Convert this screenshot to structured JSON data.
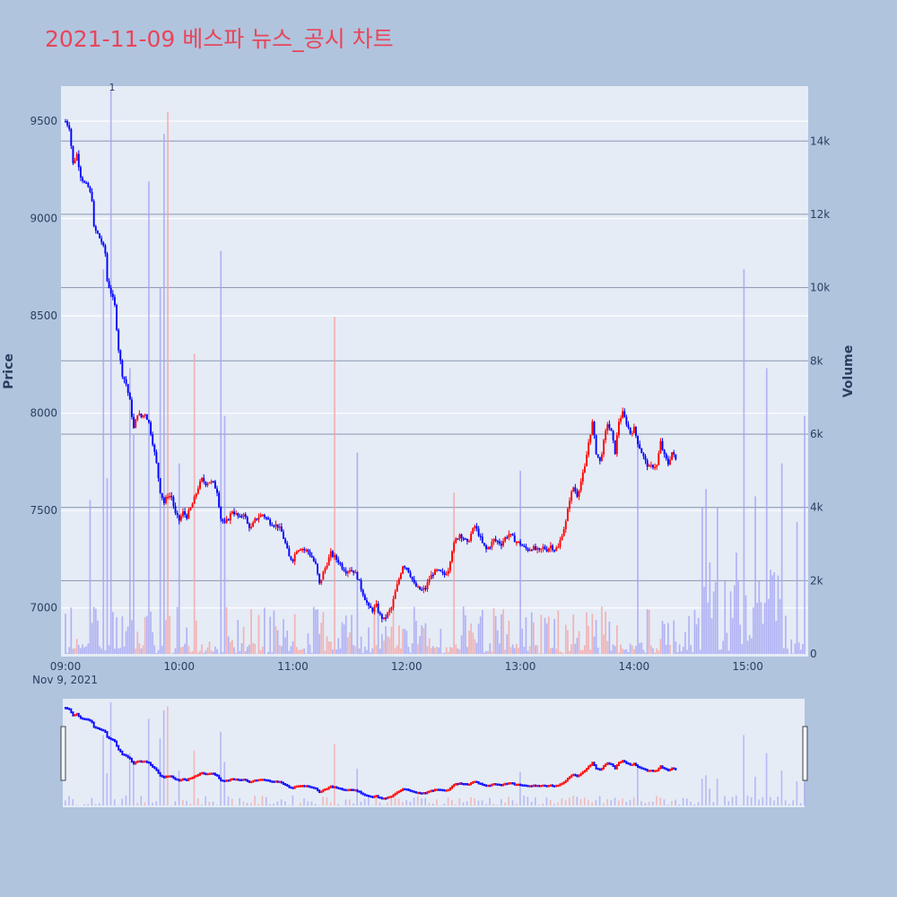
{
  "title": "2021-11-09 베스파 뉴스_공시 차트",
  "colors": {
    "background": "#b0c4de",
    "plot_bg": "#e5ecf6",
    "title": "#e8455a",
    "up": "#ff0000",
    "down": "#0000ff",
    "volume_up": "#f4a4a4",
    "volume_down": "#a4a4f4",
    "axis_text": "#2a3f5f",
    "grid": "#ffffff",
    "volume_grid": "#8a96b0"
  },
  "chart_data": {
    "type": "candlestick",
    "x_axis": {
      "ticks": [
        "09:00",
        "10:00",
        "11:00",
        "12:00",
        "13:00",
        "14:00",
        "15:00"
      ],
      "date_label": "Nov 9, 2021",
      "range": [
        "09:00",
        "15:30"
      ]
    },
    "y_axis_left": {
      "label": "Price",
      "ticks": [
        7000,
        7500,
        8000,
        8500,
        9000,
        9500
      ],
      "range": [
        6750,
        9680
      ]
    },
    "y_axis_right": {
      "label": "Volume",
      "ticks": [
        "0",
        "2k",
        "4k",
        "6k",
        "8k",
        "10k",
        "12k",
        "14k"
      ],
      "range": [
        0,
        15500
      ]
    },
    "annotation": {
      "text": "1",
      "time": "09:24"
    },
    "price_path": [
      [
        "09:00",
        9500
      ],
      [
        "09:02",
        9470
      ],
      [
        "09:04",
        9280
      ],
      [
        "09:06",
        9330
      ],
      [
        "09:08",
        9220
      ],
      [
        "09:10",
        9180
      ],
      [
        "09:12",
        9160
      ],
      [
        "09:14",
        9100
      ],
      [
        "09:15",
        8950
      ],
      [
        "09:17",
        8920
      ],
      [
        "09:19",
        8880
      ],
      [
        "09:21",
        8820
      ],
      [
        "09:22",
        8680
      ],
      [
        "09:24",
        8620
      ],
      [
        "09:26",
        8550
      ],
      [
        "09:28",
        8330
      ],
      [
        "09:30",
        8200
      ],
      [
        "09:32",
        8150
      ],
      [
        "09:34",
        8060
      ],
      [
        "09:36",
        7920
      ],
      [
        "09:38",
        8000
      ],
      [
        "09:40",
        7980
      ],
      [
        "09:42",
        8000
      ],
      [
        "09:44",
        7950
      ],
      [
        "09:46",
        7850
      ],
      [
        "09:48",
        7740
      ],
      [
        "09:50",
        7600
      ],
      [
        "09:52",
        7540
      ],
      [
        "09:54",
        7580
      ],
      [
        "09:56",
        7570
      ],
      [
        "09:58",
        7480
      ],
      [
        "10:00",
        7450
      ],
      [
        "10:02",
        7490
      ],
      [
        "10:04",
        7470
      ],
      [
        "10:06",
        7510
      ],
      [
        "10:08",
        7560
      ],
      [
        "10:10",
        7620
      ],
      [
        "10:12",
        7660
      ],
      [
        "10:14",
        7640
      ],
      [
        "10:16",
        7650
      ],
      [
        "10:18",
        7640
      ],
      [
        "10:20",
        7600
      ],
      [
        "10:22",
        7460
      ],
      [
        "10:24",
        7430
      ],
      [
        "10:26",
        7460
      ],
      [
        "10:28",
        7500
      ],
      [
        "10:30",
        7480
      ],
      [
        "10:32",
        7460
      ],
      [
        "10:34",
        7490
      ],
      [
        "10:36",
        7430
      ],
      [
        "10:38",
        7410
      ],
      [
        "10:40",
        7450
      ],
      [
        "10:42",
        7470
      ],
      [
        "10:44",
        7480
      ],
      [
        "10:46",
        7460
      ],
      [
        "10:48",
        7440
      ],
      [
        "10:50",
        7430
      ],
      [
        "10:52",
        7420
      ],
      [
        "10:54",
        7390
      ],
      [
        "10:56",
        7330
      ],
      [
        "10:58",
        7260
      ],
      [
        "11:00",
        7250
      ],
      [
        "11:02",
        7300
      ],
      [
        "11:04",
        7310
      ],
      [
        "11:06",
        7300
      ],
      [
        "11:08",
        7290
      ],
      [
        "11:10",
        7260
      ],
      [
        "11:12",
        7220
      ],
      [
        "11:14",
        7120
      ],
      [
        "11:16",
        7180
      ],
      [
        "11:18",
        7230
      ],
      [
        "11:20",
        7280
      ],
      [
        "11:22",
        7260
      ],
      [
        "11:24",
        7240
      ],
      [
        "11:26",
        7210
      ],
      [
        "11:28",
        7190
      ],
      [
        "11:30",
        7200
      ],
      [
        "11:32",
        7190
      ],
      [
        "11:34",
        7160
      ],
      [
        "11:36",
        7100
      ],
      [
        "11:38",
        7050
      ],
      [
        "11:40",
        7000
      ],
      [
        "11:42",
        6990
      ],
      [
        "11:44",
        7010
      ],
      [
        "11:46",
        6960
      ],
      [
        "11:48",
        6940
      ],
      [
        "11:50",
        6970
      ],
      [
        "11:52",
        7000
      ],
      [
        "11:54",
        7080
      ],
      [
        "11:56",
        7150
      ],
      [
        "11:58",
        7220
      ],
      [
        "12:00",
        7210
      ],
      [
        "12:02",
        7170
      ],
      [
        "12:04",
        7120
      ],
      [
        "12:06",
        7100
      ],
      [
        "12:08",
        7090
      ],
      [
        "12:10",
        7100
      ],
      [
        "12:12",
        7150
      ],
      [
        "12:14",
        7180
      ],
      [
        "12:16",
        7190
      ],
      [
        "12:18",
        7180
      ],
      [
        "12:20",
        7170
      ],
      [
        "12:22",
        7200
      ],
      [
        "12:24",
        7300
      ],
      [
        "12:26",
        7350
      ],
      [
        "12:28",
        7380
      ],
      [
        "12:30",
        7360
      ],
      [
        "12:32",
        7330
      ],
      [
        "12:34",
        7380
      ],
      [
        "12:36",
        7420
      ],
      [
        "12:38",
        7380
      ],
      [
        "12:40",
        7330
      ],
      [
        "12:42",
        7300
      ],
      [
        "12:44",
        7320
      ],
      [
        "12:46",
        7350
      ],
      [
        "12:48",
        7340
      ],
      [
        "12:50",
        7330
      ],
      [
        "12:52",
        7360
      ],
      [
        "12:54",
        7380
      ],
      [
        "12:56",
        7360
      ],
      [
        "12:58",
        7340
      ],
      [
        "13:00",
        7330
      ],
      [
        "13:02",
        7310
      ],
      [
        "13:04",
        7300
      ],
      [
        "13:06",
        7310
      ],
      [
        "13:08",
        7300
      ],
      [
        "13:10",
        7290
      ],
      [
        "13:12",
        7310
      ],
      [
        "13:14",
        7300
      ],
      [
        "13:16",
        7320
      ],
      [
        "13:18",
        7300
      ],
      [
        "13:20",
        7310
      ],
      [
        "13:22",
        7380
      ],
      [
        "13:24",
        7440
      ],
      [
        "13:26",
        7560
      ],
      [
        "13:28",
        7620
      ],
      [
        "13:30",
        7580
      ],
      [
        "13:32",
        7650
      ],
      [
        "13:34",
        7720
      ],
      [
        "13:36",
        7850
      ],
      [
        "13:38",
        7950
      ],
      [
        "13:40",
        7800
      ],
      [
        "13:42",
        7750
      ],
      [
        "13:44",
        7850
      ],
      [
        "13:46",
        7950
      ],
      [
        "13:48",
        7900
      ],
      [
        "13:50",
        7800
      ],
      [
        "13:52",
        7960
      ],
      [
        "13:54",
        8000
      ],
      [
        "13:56",
        7950
      ],
      [
        "13:58",
        7900
      ],
      [
        "14:00",
        7920
      ],
      [
        "14:02",
        7850
      ],
      [
        "14:04",
        7800
      ],
      [
        "14:06",
        7750
      ],
      [
        "14:08",
        7720
      ],
      [
        "14:10",
        7730
      ],
      [
        "14:12",
        7730
      ],
      [
        "14:14",
        7850
      ],
      [
        "14:16",
        7780
      ],
      [
        "14:18",
        7740
      ],
      [
        "14:20",
        7800
      ],
      [
        "14:22",
        7760
      ]
    ]
  }
}
